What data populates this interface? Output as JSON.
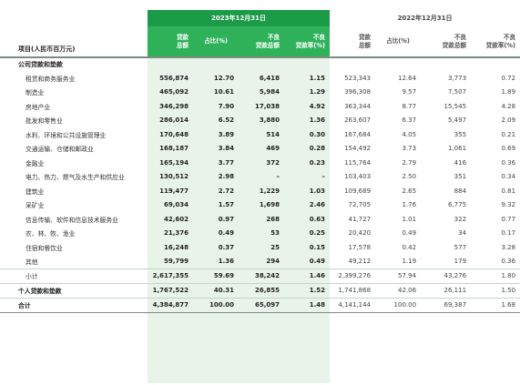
{
  "header": {
    "corner_label": "项目(人民币百万元)",
    "years": [
      "2023年12月31日",
      "2022年12月31日"
    ],
    "columns": [
      [
        "贷款",
        "总额"
      ],
      [
        "占比(%)"
      ],
      [
        "不良",
        "贷款总额"
      ],
      [
        "不良",
        "贷款率(%)"
      ]
    ]
  },
  "sections": {
    "corporate": "公司贷款和垫款"
  },
  "rows": [
    {
      "label": "租赁和商务服务业",
      "v": [
        "556,874",
        "12.70",
        "6,418",
        "1.15",
        "523,343",
        "12.64",
        "3,773",
        "0.72"
      ]
    },
    {
      "label": "制造业",
      "v": [
        "465,092",
        "10.61",
        "5,984",
        "1.29",
        "396,308",
        "9.57",
        "7,507",
        "1.89"
      ]
    },
    {
      "label": "房地产业",
      "v": [
        "346,298",
        "7.90",
        "17,038",
        "4.92",
        "363,344",
        "8.77",
        "15,545",
        "4.28"
      ]
    },
    {
      "label": "批发和零售业",
      "v": [
        "286,014",
        "6.52",
        "3,880",
        "1.36",
        "263,607",
        "6.37",
        "5,497",
        "2.09"
      ]
    },
    {
      "label": "水利、环境和公共设施管理业",
      "v": [
        "170,648",
        "3.89",
        "514",
        "0.30",
        "167,684",
        "4.05",
        "355",
        "0.21"
      ]
    },
    {
      "label": "交通运输、仓储和邮政业",
      "v": [
        "168,187",
        "3.84",
        "469",
        "0.28",
        "154,492",
        "3.73",
        "1,061",
        "0.69"
      ]
    },
    {
      "label": "金融业",
      "v": [
        "165,194",
        "3.77",
        "372",
        "0.23",
        "115,764",
        "2.79",
        "416",
        "0.36"
      ]
    },
    {
      "label": "电力、热力、燃气及水生产和供应业",
      "v": [
        "130,512",
        "2.98",
        "–",
        "–",
        "103,403",
        "2.50",
        "351",
        "0.34"
      ]
    },
    {
      "label": "建筑业",
      "v": [
        "119,477",
        "2.72",
        "1,229",
        "1.03",
        "109,689",
        "2.65",
        "884",
        "0.81"
      ]
    },
    {
      "label": "采矿业",
      "v": [
        "69,034",
        "1.57",
        "1,698",
        "2.46",
        "72,705",
        "1.76",
        "6,775",
        "9.32"
      ]
    },
    {
      "label": "信息传输、软件和信息技术服务业",
      "v": [
        "42,602",
        "0.97",
        "268",
        "0.63",
        "41,727",
        "1.01",
        "322",
        "0.77"
      ]
    },
    {
      "label": "农、林、牧、渔业",
      "v": [
        "21,376",
        "0.49",
        "53",
        "0.25",
        "20,420",
        "0.49",
        "34",
        "0.17"
      ]
    },
    {
      "label": "住宿和餐饮业",
      "v": [
        "16,248",
        "0.37",
        "25",
        "0.15",
        "17,578",
        "0.42",
        "577",
        "3.28"
      ]
    },
    {
      "label": "其他",
      "v": [
        "59,799",
        "1.36",
        "294",
        "0.49",
        "49,212",
        "1.19",
        "179",
        "0.36"
      ]
    }
  ],
  "totals": [
    {
      "label": "小计",
      "v": [
        "2,617,355",
        "59.69",
        "38,242",
        "1.46",
        "2,399,276",
        "57.94",
        "43,276",
        "1.80"
      ]
    },
    {
      "label": "个人贷款和垫款",
      "v": [
        "1,767,522",
        "40.31",
        "26,855",
        "1.52",
        "1,741,868",
        "42.06",
        "26,111",
        "1.50"
      ]
    },
    {
      "label": "合计",
      "v": [
        "4,384,877",
        "100.00",
        "65,097",
        "1.48",
        "4,141,144",
        "100.00",
        "69,387",
        "1.68"
      ]
    }
  ],
  "colors": {
    "header_green": "#1b9a48",
    "sub_green": "#2fb15a",
    "band": "#e8f3ea"
  }
}
